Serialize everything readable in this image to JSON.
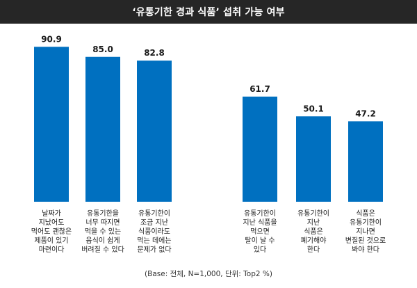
{
  "chart_data": {
    "type": "bar",
    "title": "‘유통기한 경과 식품’ 섭취 가능 여부",
    "categories": [
      "날짜가\n지났어도\n먹어도 괜찮은\n제품이 있기\n마련이다",
      "유통기한을\n너무 따지면\n먹을 수 있는\n음식이 쉽게\n버려질 수 있다",
      "유통기한이\n조금 지난\n식품이라도\n먹는 데에는\n문제가 없다",
      "유통기한이\n지난 식품을\n먹으면\n탈이 날 수\n있다",
      "유통기한이\n지난\n식품은\n폐기해야\n한다",
      "식품은\n유통기한이\n지나면\n변질된 것으로\n봐야 한다"
    ],
    "values": [
      90.9,
      85.0,
      82.8,
      61.7,
      50.1,
      47.2
    ],
    "value_labels": [
      "90.9",
      "85.0",
      "82.8",
      "61.7",
      "50.1",
      "47.2"
    ],
    "ylim": [
      0,
      100
    ],
    "grid": false,
    "legend": "none",
    "footnote": "(Base: 전체, N=1,000, 단위: Top2 %)",
    "colors": {
      "bar": "#0070C0",
      "title_bg": "#262626",
      "title_text": "#ffffff"
    }
  }
}
